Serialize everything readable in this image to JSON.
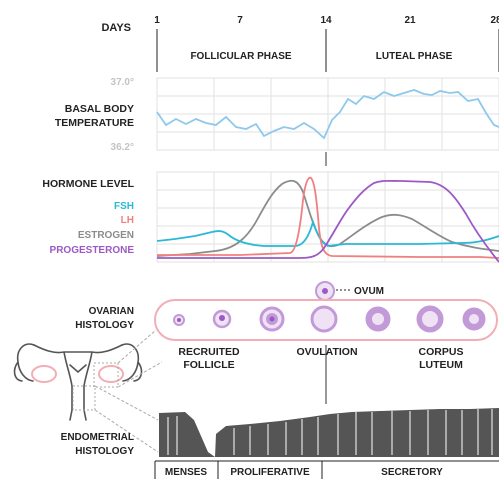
{
  "timeline": {
    "days_label": "DAYS",
    "day_ticks": [
      "1",
      "7",
      "14",
      "21",
      "28"
    ],
    "phases": [
      "FOLLICULAR PHASE",
      "LUTEAL PHASE"
    ]
  },
  "temperature": {
    "label_line1": "BASAL BODY",
    "label_line2": "TEMPERATURE",
    "high": "37.0°",
    "low": "36.2°"
  },
  "hormones": {
    "label": "HORMONE LEVEL",
    "legend": [
      {
        "name": "FSH",
        "color": "#29b8d6"
      },
      {
        "name": "LH",
        "color": "#f08080"
      },
      {
        "name": "ESTROGEN",
        "color": "#8c8c8c"
      },
      {
        "name": "PROGESTERONE",
        "color": "#9b59c6"
      }
    ]
  },
  "ovarian": {
    "label_line1": "OVARIAN",
    "label_line2": "HISTOLOGY",
    "ovum_label": "OVUM",
    "stage_labels": [
      {
        "line1": "RECRUITED",
        "line2": "FOLLICLE"
      },
      {
        "line1": "OVULATION",
        "line2": ""
      },
      {
        "line1": "CORPUS",
        "line2": "LUTEUM"
      }
    ]
  },
  "endometrial": {
    "label_line1": "ENDOMETRIAL",
    "label_line2": "HISTOLOGY",
    "phases": [
      "MENSES",
      "PROLIFERATIVE",
      "SECRETORY"
    ]
  },
  "colors": {
    "temperature_line": "#8ec9ec",
    "follicle_ring": "#c39ad8",
    "follicle_fill": "#efe2f5",
    "ovary_outline": "#f2aeb5",
    "endometrium": "#555555"
  }
}
